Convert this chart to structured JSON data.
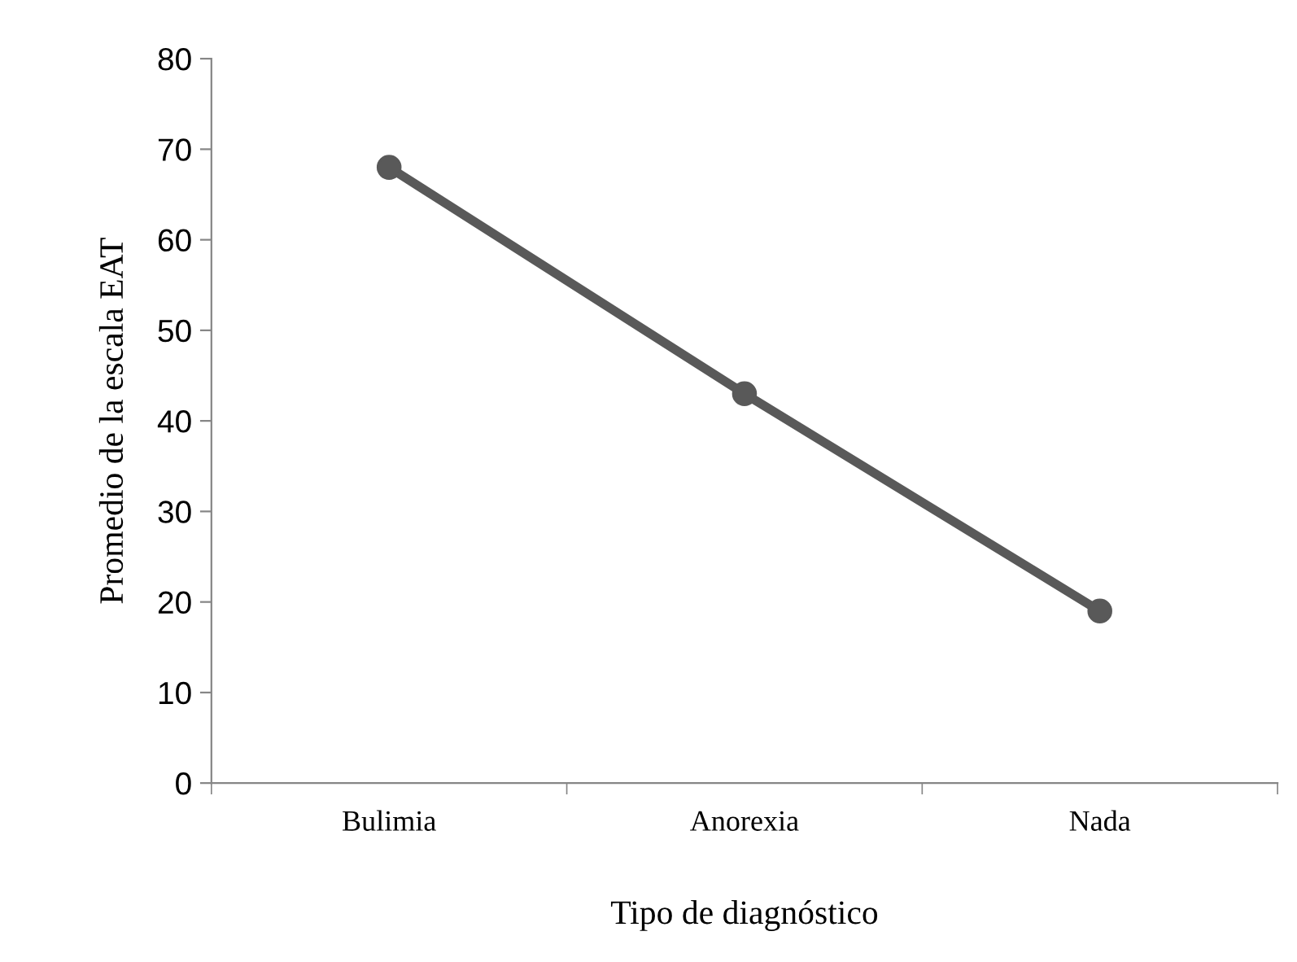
{
  "chart_data": {
    "type": "line",
    "xlabel": "Tipo de diagnóstico",
    "ylabel": "Promedio de la escala EAT",
    "categories": [
      "Bulimia",
      "Anorexia",
      "Nada"
    ],
    "series": [
      {
        "color": "#595959",
        "values": [
          68,
          43,
          19
        ]
      }
    ],
    "ylim": [
      0,
      80
    ],
    "yticks": [
      0,
      10,
      20,
      30,
      40,
      50,
      60,
      70,
      80
    ],
    "marker": "circle",
    "line_style": "solid",
    "grid": false,
    "legend": false
  }
}
